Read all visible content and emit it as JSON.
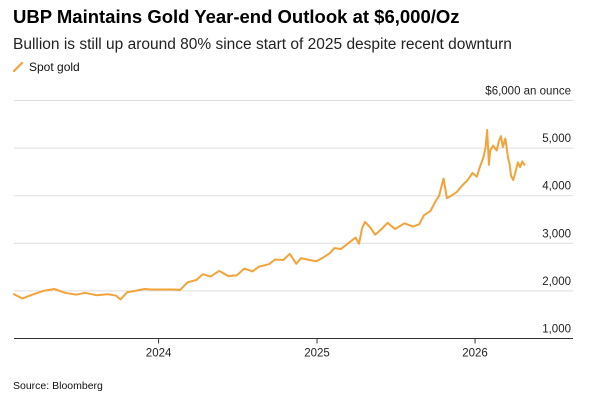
{
  "header": {
    "title": "UBP Maintains Gold Year-end Outlook at $6,000/Oz",
    "subtitle": "Bullion is still up around 80% since start of 2025 despite recent downturn"
  },
  "legend": {
    "label": "Spot gold"
  },
  "footer": {
    "source": "Source: Bloomberg"
  },
  "colors": {
    "series": "#f2a33a",
    "grid": "#dddddd",
    "axis": "#333333"
  },
  "chart_data": {
    "type": "line",
    "title": "UBP Maintains Gold Year-end Outlook at $6,000/Oz",
    "subtitle": "Bullion is still up around 80% since start of 2025 despite recent downturn",
    "ylabel": "$6,000 an ounce",
    "ylim": [
      1000,
      6000
    ],
    "yticks": [
      1000,
      2000,
      3000,
      4000,
      5000
    ],
    "ytick_labels": [
      "1,000",
      "2,000",
      "3,000",
      "4,000",
      "5,000"
    ],
    "yticks_top_label": "$6,000 an ounce",
    "xlim": [
      "2023-02-01",
      "2026-05-31"
    ],
    "xticks": [
      {
        "date": "2024-01-01",
        "label": "2024"
      },
      {
        "date": "2025-01-01",
        "label": "2025"
      },
      {
        "date": "2026-01-01",
        "label": "2026"
      }
    ],
    "grid": true,
    "legend_position": "top-left",
    "series": [
      {
        "name": "Spot gold",
        "points": [
          [
            "2023-02-01",
            1930
          ],
          [
            "2023-02-20",
            1840
          ],
          [
            "2023-03-15",
            1920
          ],
          [
            "2023-04-10",
            2000
          ],
          [
            "2023-05-05",
            2040
          ],
          [
            "2023-05-30",
            1960
          ],
          [
            "2023-06-25",
            1920
          ],
          [
            "2023-07-15",
            1960
          ],
          [
            "2023-08-10",
            1910
          ],
          [
            "2023-09-05",
            1930
          ],
          [
            "2023-09-25",
            1900
          ],
          [
            "2023-10-05",
            1820
          ],
          [
            "2023-10-20",
            1970
          ],
          [
            "2023-11-01",
            1990
          ],
          [
            "2023-11-30",
            2040
          ],
          [
            "2023-12-15",
            2030
          ],
          [
            "2024-01-10",
            2030
          ],
          [
            "2024-02-05",
            2030
          ],
          [
            "2024-02-20",
            2020
          ],
          [
            "2024-03-08",
            2180
          ],
          [
            "2024-03-28",
            2230
          ],
          [
            "2024-04-12",
            2350
          ],
          [
            "2024-04-30",
            2300
          ],
          [
            "2024-05-20",
            2420
          ],
          [
            "2024-06-10",
            2310
          ],
          [
            "2024-06-30",
            2330
          ],
          [
            "2024-07-17",
            2470
          ],
          [
            "2024-08-05",
            2410
          ],
          [
            "2024-08-20",
            2510
          ],
          [
            "2024-09-12",
            2560
          ],
          [
            "2024-09-26",
            2660
          ],
          [
            "2024-10-15",
            2650
          ],
          [
            "2024-10-30",
            2780
          ],
          [
            "2024-11-14",
            2570
          ],
          [
            "2024-11-25",
            2690
          ],
          [
            "2024-12-15",
            2650
          ],
          [
            "2024-12-30",
            2620
          ],
          [
            "2025-01-15",
            2700
          ],
          [
            "2025-01-30",
            2790
          ],
          [
            "2025-02-10",
            2900
          ],
          [
            "2025-02-25",
            2880
          ],
          [
            "2025-03-14",
            3000
          ],
          [
            "2025-03-31",
            3120
          ],
          [
            "2025-04-08",
            2990
          ],
          [
            "2025-04-15",
            3320
          ],
          [
            "2025-04-22",
            3450
          ],
          [
            "2025-05-05",
            3320
          ],
          [
            "2025-05-15",
            3180
          ],
          [
            "2025-05-30",
            3300
          ],
          [
            "2025-06-13",
            3430
          ],
          [
            "2025-06-30",
            3300
          ],
          [
            "2025-07-22",
            3420
          ],
          [
            "2025-08-10",
            3350
          ],
          [
            "2025-08-25",
            3400
          ],
          [
            "2025-09-05",
            3590
          ],
          [
            "2025-09-20",
            3680
          ],
          [
            "2025-10-01",
            3870
          ],
          [
            "2025-10-10",
            4000
          ],
          [
            "2025-10-20",
            4360
          ],
          [
            "2025-10-28",
            3950
          ],
          [
            "2025-11-07",
            4000
          ],
          [
            "2025-11-20",
            4080
          ],
          [
            "2025-12-01",
            4200
          ],
          [
            "2025-12-15",
            4330
          ],
          [
            "2025-12-26",
            4480
          ],
          [
            "2026-01-05",
            4400
          ],
          [
            "2026-01-12",
            4600
          ],
          [
            "2026-01-20",
            4800
          ],
          [
            "2026-01-25",
            5000
          ],
          [
            "2026-01-29",
            5380
          ],
          [
            "2026-02-02",
            4650
          ],
          [
            "2026-02-05",
            4950
          ],
          [
            "2026-02-12",
            5050
          ],
          [
            "2026-02-20",
            4950
          ],
          [
            "2026-02-25",
            5150
          ],
          [
            "2026-03-02",
            5250
          ],
          [
            "2026-03-06",
            5020
          ],
          [
            "2026-03-12",
            5200
          ],
          [
            "2026-03-18",
            4800
          ],
          [
            "2026-03-22",
            4650
          ],
          [
            "2026-03-25",
            4420
          ],
          [
            "2026-03-30",
            4330
          ],
          [
            "2026-04-05",
            4520
          ],
          [
            "2026-04-10",
            4700
          ],
          [
            "2026-04-15",
            4600
          ],
          [
            "2026-04-20",
            4720
          ],
          [
            "2026-04-25",
            4650
          ]
        ]
      }
    ]
  }
}
